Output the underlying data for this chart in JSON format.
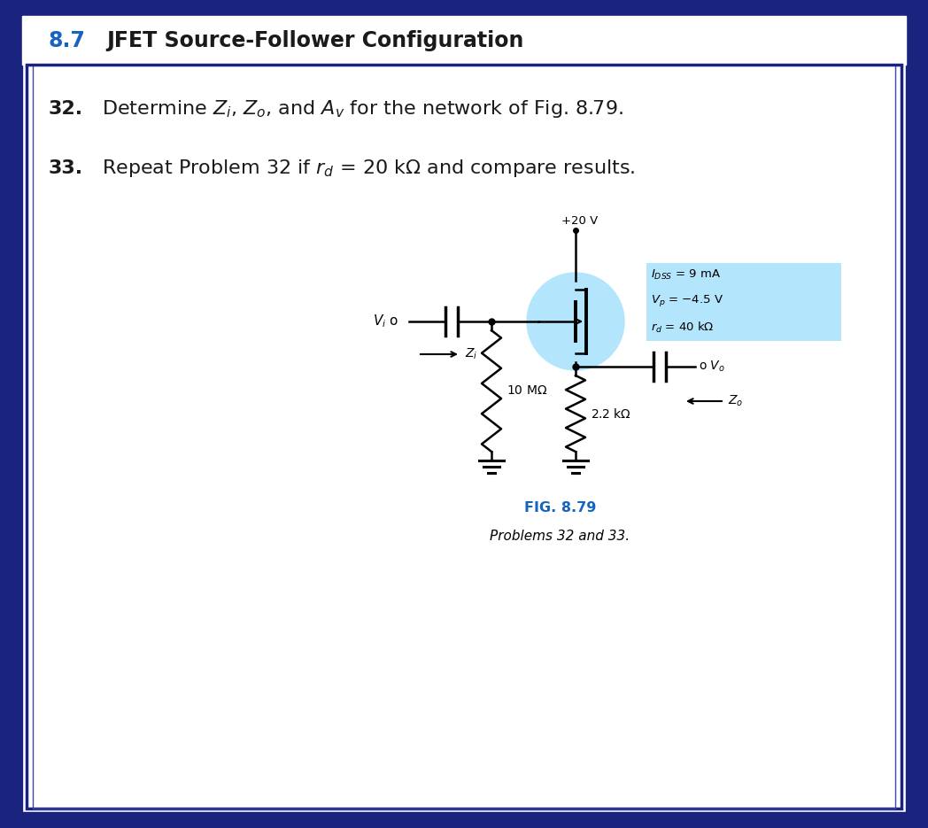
{
  "bg_color": "#ffffff",
  "border_outer_color": "#1a237e",
  "border_inner_color": "#3949ab",
  "title_number_color": "#1565c0",
  "title_text_color": "#1a1a1a",
  "fig_label_color": "#1565c0",
  "circuit_bg": "#b3e5fc",
  "black": "#000000",
  "title_number": "8.7",
  "title_text": "JFET Source-Follower Configuration",
  "p32_bold": "32.",
  "p32_text": "Determine $Z_i$, $Z_o$, and $A_v$ for the network of Fig. 8.79.",
  "p33_bold": "33.",
  "p33_text": "Repeat Problem 32 if $r_d$ = 20 k$\\Omega$ and compare results.",
  "param1": "$I_{DSS}$ = 9 mA",
  "param2": "$V_p$ = −4.5 V",
  "param3": "$r_d$ = 40 k$\\Omega$",
  "vplus": "+20 V",
  "fig_label": "FIG. 8.79",
  "fig_caption": "Problems 32 and 33.",
  "vi_label": "$V_i$",
  "vo_label": "o $V_o$",
  "zi_label": "$Z_i$",
  "zo_label": "$Z_o$",
  "r1_label": "10 M$\\Omega$",
  "r2_label": "2.2 k$\\Omega$"
}
